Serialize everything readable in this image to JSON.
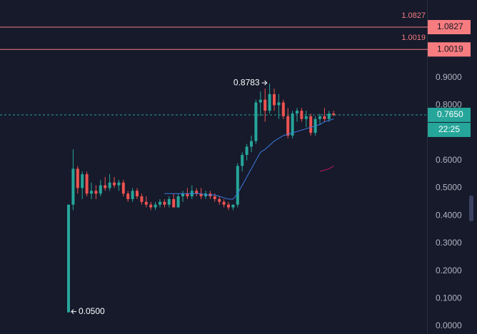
{
  "chart_data": {
    "type": "candlestick",
    "open": [
      0.05,
      0.44,
      0.57,
      0.5,
      0.55,
      0.48,
      0.49,
      0.48,
      0.51,
      0.5,
      0.52,
      0.51,
      0.52,
      0.48,
      0.46,
      0.49,
      0.47,
      0.45,
      0.44,
      0.43,
      0.44,
      0.45,
      0.44,
      0.46,
      0.43,
      0.47,
      0.48,
      0.47,
      0.49,
      0.48,
      0.47,
      0.48,
      0.47,
      0.46,
      0.45,
      0.44,
      0.43,
      0.44,
      0.58,
      0.62,
      0.65,
      0.67,
      0.81,
      0.82,
      0.78,
      0.84,
      0.8,
      0.81,
      0.76,
      0.69,
      0.77,
      0.78,
      0.75,
      0.76,
      0.7,
      0.75,
      0.76,
      0.75,
      0.77
    ],
    "high": [
      0.44,
      0.64,
      0.58,
      0.56,
      0.56,
      0.52,
      0.51,
      0.53,
      0.54,
      0.55,
      0.54,
      0.53,
      0.53,
      0.49,
      0.5,
      0.5,
      0.48,
      0.47,
      0.45,
      0.45,
      0.46,
      0.46,
      0.47,
      0.48,
      0.48,
      0.49,
      0.5,
      0.51,
      0.5,
      0.5,
      0.49,
      0.49,
      0.48,
      0.47,
      0.46,
      0.45,
      0.44,
      0.59,
      0.63,
      0.66,
      0.69,
      0.82,
      0.85,
      0.86,
      0.8783,
      0.86,
      0.84,
      0.82,
      0.79,
      0.78,
      0.79,
      0.79,
      0.78,
      0.77,
      0.76,
      0.77,
      0.79,
      0.78,
      0.78
    ],
    "low": [
      0.05,
      0.42,
      0.48,
      0.46,
      0.47,
      0.46,
      0.46,
      0.47,
      0.49,
      0.49,
      0.5,
      0.49,
      0.47,
      0.45,
      0.45,
      0.46,
      0.44,
      0.43,
      0.42,
      0.42,
      0.43,
      0.43,
      0.43,
      0.43,
      0.43,
      0.45,
      0.46,
      0.46,
      0.47,
      0.46,
      0.46,
      0.46,
      0.45,
      0.44,
      0.43,
      0.42,
      0.42,
      0.43,
      0.56,
      0.6,
      0.63,
      0.66,
      0.76,
      0.74,
      0.77,
      0.78,
      0.75,
      0.75,
      0.68,
      0.68,
      0.74,
      0.74,
      0.72,
      0.69,
      0.69,
      0.73,
      0.74,
      0.74,
      0.76
    ],
    "close": [
      0.44,
      0.57,
      0.5,
      0.55,
      0.48,
      0.49,
      0.48,
      0.51,
      0.5,
      0.52,
      0.51,
      0.52,
      0.48,
      0.46,
      0.49,
      0.47,
      0.45,
      0.44,
      0.43,
      0.44,
      0.45,
      0.44,
      0.46,
      0.43,
      0.47,
      0.48,
      0.47,
      0.49,
      0.48,
      0.47,
      0.48,
      0.47,
      0.46,
      0.45,
      0.44,
      0.43,
      0.44,
      0.58,
      0.62,
      0.65,
      0.67,
      0.81,
      0.82,
      0.78,
      0.84,
      0.8,
      0.81,
      0.76,
      0.69,
      0.77,
      0.78,
      0.75,
      0.76,
      0.7,
      0.75,
      0.76,
      0.75,
      0.77,
      0.765
    ],
    "up_color": "#26a69a",
    "down_color": "#ef5350",
    "series": [
      {
        "color": "#3d7be0",
        "values": [
          null,
          null,
          null,
          null,
          null,
          null,
          null,
          null,
          null,
          null,
          null,
          null,
          null,
          null,
          null,
          null,
          null,
          null,
          null,
          null,
          null,
          0.48,
          0.48,
          0.48,
          0.48,
          0.48,
          0.48,
          0.48,
          0.48,
          0.48,
          0.475,
          0.475,
          0.475,
          0.47,
          0.465,
          0.46,
          0.46,
          0.48,
          0.51,
          0.54,
          0.57,
          0.6,
          0.63,
          0.64,
          0.655,
          0.67,
          0.68,
          0.69,
          0.695,
          0.7,
          0.705,
          0.71,
          0.715,
          0.72,
          0.725,
          0.73,
          0.74,
          0.745,
          0.75
        ]
      },
      {
        "color": "#c2185b",
        "values": [
          null,
          null,
          null,
          null,
          null,
          null,
          null,
          null,
          null,
          null,
          null,
          null,
          null,
          null,
          null,
          null,
          null,
          null,
          null,
          null,
          null,
          null,
          null,
          null,
          null,
          null,
          null,
          null,
          null,
          null,
          null,
          null,
          null,
          null,
          null,
          null,
          null,
          null,
          null,
          null,
          null,
          null,
          null,
          null,
          null,
          null,
          null,
          null,
          null,
          null,
          null,
          null,
          null,
          null,
          null,
          0.56,
          0.565,
          0.57,
          0.58
        ]
      }
    ],
    "ylim": [
      -0.0284,
      1.1809
    ],
    "yticks": [
      {
        "value": 0,
        "label": "0.0000"
      },
      {
        "value": 0.1,
        "label": "0.1000"
      },
      {
        "value": 0.2,
        "label": "0.2000"
      },
      {
        "value": 0.3,
        "label": "0.3000"
      },
      {
        "value": 0.4,
        "label": "0.4000"
      },
      {
        "value": 0.5,
        "label": "0.5000"
      },
      {
        "value": 0.6,
        "label": "0.6000"
      },
      {
        "value": 0.7,
        "label": "0.7000"
      },
      {
        "value": 0.8,
        "label": "0.8000"
      },
      {
        "value": 0.9,
        "label": "0.9000"
      }
    ],
    "price_lines": [
      1.0827,
      1.0019
    ],
    "price_line_color": "#f77c80",
    "last_price": {
      "value": 0.765,
      "label": "0.7650"
    },
    "countdown": "22:25",
    "annotations": [
      {
        "value": 0.8783,
        "label": "0.8783",
        "of": "high"
      },
      {
        "value": 0.05,
        "label": "0.0500",
        "of": "low"
      }
    ]
  }
}
